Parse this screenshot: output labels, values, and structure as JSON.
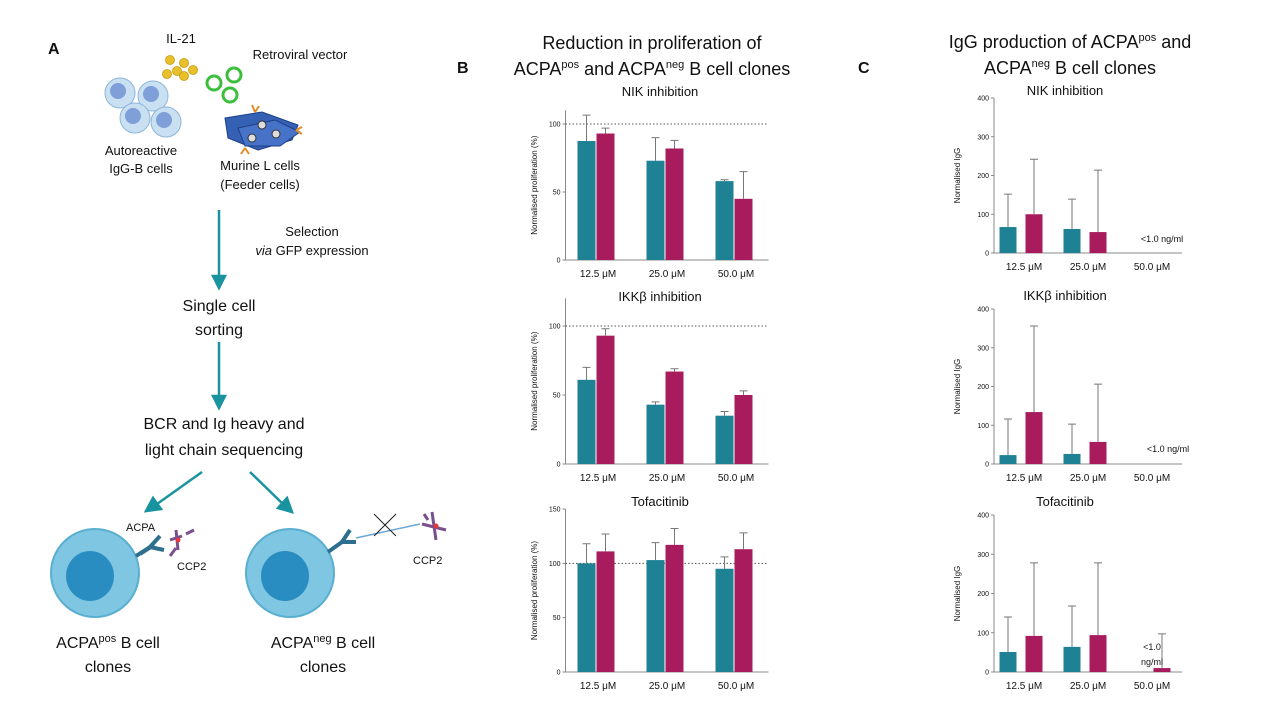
{
  "panel_a": {
    "label": "A",
    "il21": "IL-21",
    "vector": "Retroviral vector",
    "b_cells": [
      "Autoreactive",
      "IgG-B cells"
    ],
    "feeder": [
      "Murine L cells",
      "(Feeder cells)"
    ],
    "selection": "Selection",
    "selection_method": [
      "via",
      " GFP expression"
    ],
    "sorting": [
      "Single cell",
      "sorting"
    ],
    "sequencing": [
      "BCR and Ig heavy and",
      "light chain sequencing"
    ],
    "acpa": "ACPA",
    "ccp2_left": "CCP2",
    "ccp2_right": "CCP2",
    "pos_clones": [
      [
        "ACPA",
        "pos",
        " B cell"
      ],
      [
        "clones"
      ]
    ],
    "neg_clones": [
      [
        "ACPA",
        "neg",
        " B cell"
      ],
      [
        "clones"
      ]
    ]
  },
  "panel_b": {
    "label": "B",
    "title_lines": [
      [
        "Reduction in proliferation  of"
      ],
      [
        "ACPA",
        "pos",
        "  and ACPA",
        "neg",
        "  B cell clones"
      ]
    ]
  },
  "panel_c": {
    "label": "C",
    "title_lines": [
      [
        "IgG production of ACPA",
        "pos",
        " and"
      ],
      [
        "ACPA",
        "neg",
        " B cell clones"
      ]
    ]
  },
  "chart_data": [
    {
      "type": "bar",
      "title": "NIK inhibition",
      "y_label": "Normalised proliferation (%)",
      "categories": [
        "12.5 μM",
        "25.0 μM",
        "50.0 μM"
      ],
      "series": [
        {
          "color": "#1f8294",
          "values": [
            87.5,
            73,
            58
          ],
          "errors": [
            19,
            17,
            1
          ]
        },
        {
          "color": "#a81c5d",
          "values": [
            93,
            82,
            45
          ],
          "errors": [
            4,
            6,
            20
          ]
        }
      ],
      "ylim": [
        0,
        110
      ],
      "yticks": [
        0,
        50,
        100
      ],
      "reference_line": 100
    },
    {
      "type": "bar",
      "title": "IKKβ  inhibition",
      "y_label": "Normalised proliferation (%)",
      "categories": [
        "12.5 μM",
        "25.0 μM",
        "50.0 μM"
      ],
      "series": [
        {
          "color": "#1f8294",
          "values": [
            61,
            43,
            35
          ],
          "errors": [
            9,
            2,
            3
          ]
        },
        {
          "color": "#a81c5d",
          "values": [
            93,
            67,
            50
          ],
          "errors": [
            5,
            2,
            3
          ]
        }
      ],
      "ylim": [
        0,
        120
      ],
      "yticks": [
        0,
        50,
        100
      ],
      "reference_line": 100
    },
    {
      "type": "bar",
      "title": "Tofacitinib",
      "y_label": "Normalised proliferation (%)",
      "categories": [
        "12.5 μM",
        "25.0 μM",
        "50.0 μM"
      ],
      "series": [
        {
          "color": "#1f8294",
          "values": [
            100,
            103,
            95
          ],
          "errors": [
            18,
            16,
            11
          ]
        },
        {
          "color": "#a81c5d",
          "values": [
            111,
            117,
            113
          ],
          "errors": [
            16,
            15,
            15
          ]
        }
      ],
      "ylim": [
        0,
        150
      ],
      "yticks": [
        0,
        50,
        100,
        150
      ],
      "reference_line": 100
    },
    {
      "type": "bar",
      "title": "NIK inhibition",
      "y_label": "Normalised IgG",
      "categories": [
        "12.5 μM",
        "25.0 μM",
        "50.0 μM"
      ],
      "series": [
        {
          "color": "#1f8294",
          "values": [
            67,
            62,
            null
          ],
          "errors": [
            85,
            77,
            null
          ]
        },
        {
          "color": "#a81c5d",
          "values": [
            100,
            54,
            null
          ],
          "errors": [
            142,
            160,
            null
          ]
        }
      ],
      "ylim": [
        0,
        400
      ],
      "yticks": [
        0,
        100,
        200,
        300,
        400
      ],
      "annotation": [
        "<1.0 ng/ml"
      ]
    },
    {
      "type": "bar",
      "title": "IKKβ inhibition",
      "y_label": "Normalised IgG",
      "categories": [
        "12.5 μM",
        "25.0 μM",
        "50.0 μM"
      ],
      "series": [
        {
          "color": "#1f8294",
          "values": [
            23,
            26,
            null
          ],
          "errors": [
            93,
            77,
            null
          ]
        },
        {
          "color": "#a81c5d",
          "values": [
            134,
            57,
            null
          ],
          "errors": [
            222,
            149,
            null
          ]
        }
      ],
      "ylim": [
        0,
        400
      ],
      "yticks": [
        0,
        100,
        200,
        300,
        400
      ],
      "annotation": [
        "<1.0 ng/ml"
      ]
    },
    {
      "type": "bar",
      "title": "Tofacitinib",
      "y_label": "Normalised IgG",
      "categories": [
        "12.5 μM",
        "25.0 μM",
        "50.0 μM"
      ],
      "series": [
        {
          "color": "#1f8294",
          "values": [
            51,
            64,
            null
          ],
          "errors": [
            89,
            104,
            null
          ]
        },
        {
          "color": "#a81c5d",
          "values": [
            92,
            94,
            10
          ],
          "errors": [
            186,
            184,
            87
          ]
        }
      ],
      "ylim": [
        0,
        400
      ],
      "yticks": [
        0,
        100,
        200,
        300,
        400
      ],
      "annotation": [
        "<1.0",
        "ng/ml"
      ]
    }
  ]
}
